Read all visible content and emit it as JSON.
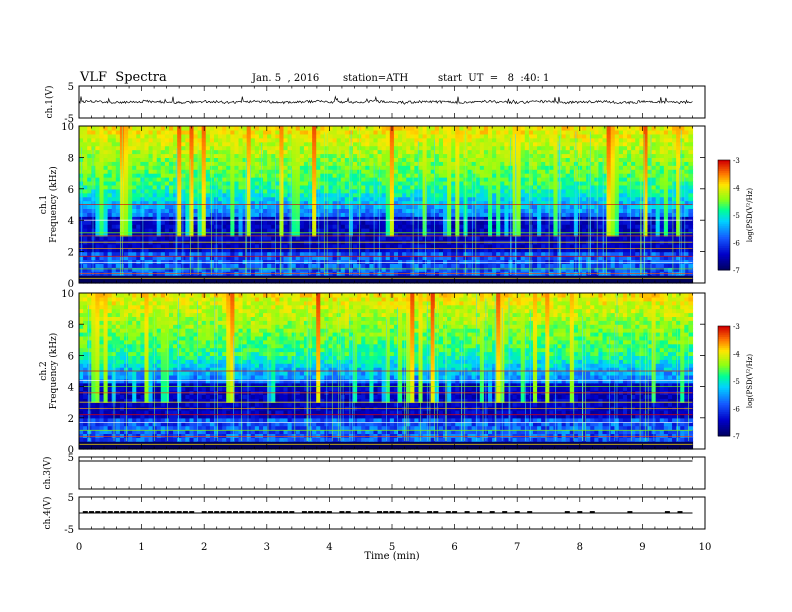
{
  "header": {
    "title": "VLF  Spectra",
    "date": "Jan. 5  , 2016",
    "station": "station=ATH",
    "start": "start  UT  =   8  :40: 1"
  },
  "chart_data": [
    {
      "type": "line",
      "name": "ch1-waveform",
      "ylabel": "ch.1(V)",
      "ylim": [
        -5,
        5
      ],
      "yticks": [
        "5",
        "-5"
      ],
      "xlim": [
        0,
        10
      ],
      "x_end": 9.8,
      "baseline": 0,
      "amplitude": 0.8,
      "grid": false
    },
    {
      "type": "heatmap",
      "name": "ch1-spectrogram",
      "ylabel_top": "ch.1",
      "ylabel": "Frequency (kHz)",
      "ylim": [
        0,
        10
      ],
      "yticks": [
        "0",
        "2",
        "4",
        "6",
        "8",
        "10"
      ],
      "xlim": [
        0,
        10
      ],
      "x_end": 9.8,
      "colorbar": {
        "label": "log(PSD(V²/Hz)",
        "range": [
          -7,
          -3
        ],
        "ticks": [
          "-3",
          "-4",
          "-5",
          "-6",
          "-7"
        ]
      },
      "lines_khz": [
        0.3,
        0.6,
        0.9,
        1.3,
        1.7,
        2.2,
        2.6,
        3.0,
        3.2,
        4.0,
        5.0
      ]
    },
    {
      "type": "heatmap",
      "name": "ch2-spectrogram",
      "ylabel_top": "ch.2",
      "ylabel": "Frequency (kHz)",
      "ylim": [
        0,
        10
      ],
      "yticks": [
        "0",
        "2",
        "4",
        "6",
        "8",
        "10"
      ],
      "xlim": [
        0,
        10
      ],
      "x_end": 9.8,
      "colorbar": {
        "label": "log(PSD(V²/Hz)",
        "range": [
          -7,
          -3
        ],
        "ticks": [
          "-3",
          "-4",
          "-5",
          "-6",
          "-7"
        ]
      },
      "lines_khz": [
        0.3,
        0.8,
        1.2,
        1.7,
        2.2,
        2.6,
        3.0,
        3.6,
        4.0,
        4.4,
        5.0
      ]
    },
    {
      "type": "line",
      "name": "ch3-waveform",
      "ylabel": "ch.3(V)",
      "ylim": [
        -5,
        5
      ],
      "yticks": [
        "5"
      ],
      "xlim": [
        0,
        10
      ],
      "x_end": 9.8,
      "baseline": 5,
      "grid": false
    },
    {
      "type": "line",
      "name": "ch4-waveform",
      "ylabel": "ch.4(V)",
      "ylim": [
        -5,
        5
      ],
      "yticks": [
        "5",
        "-5"
      ],
      "xlim": [
        0,
        10
      ],
      "x_end": 9.8,
      "baseline": 0,
      "pulse_level": 0.6,
      "pulses_min": [
        0.1,
        0.2,
        0.3,
        0.4,
        0.5,
        0.6,
        0.7,
        0.8,
        0.9,
        1.0,
        1.1,
        1.2,
        1.3,
        1.4,
        1.5,
        1.6,
        1.7,
        1.8,
        2.0,
        2.1,
        2.2,
        2.3,
        2.4,
        2.5,
        2.6,
        2.7,
        2.8,
        2.9,
        3.0,
        3.1,
        3.2,
        3.3,
        3.4,
        3.6,
        3.7,
        3.8,
        3.9,
        4.0,
        4.2,
        4.3,
        4.5,
        4.6,
        4.8,
        4.9,
        5.0,
        5.1,
        5.3,
        5.4,
        5.6,
        5.7,
        5.9,
        6.0,
        6.2,
        6.4,
        6.6,
        6.8,
        7.0,
        7.2,
        7.8,
        8.0,
        8.2,
        8.8,
        9.4,
        9.6
      ],
      "xlabel": "Time  (min)",
      "xticks": [
        "0",
        "1",
        "2",
        "3",
        "4",
        "5",
        "6",
        "7",
        "8",
        "9",
        "10"
      ]
    }
  ]
}
